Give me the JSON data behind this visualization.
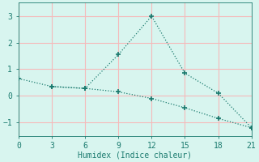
{
  "line1_x": [
    0,
    3,
    6,
    9,
    12,
    15,
    18,
    21
  ],
  "line1_y": [
    0.65,
    0.35,
    0.28,
    1.55,
    3.0,
    0.85,
    0.1,
    -1.2
  ],
  "line2_x": [
    3,
    6,
    9,
    12,
    15,
    18,
    21
  ],
  "line2_y": [
    0.35,
    0.28,
    0.15,
    -0.1,
    -0.45,
    -0.85,
    -1.2
  ],
  "color": "#1a7a6e",
  "xlabel": "Humidex (Indice chaleur)",
  "xlim": [
    0,
    21
  ],
  "ylim": [
    -1.5,
    3.5
  ],
  "xticks": [
    0,
    3,
    6,
    9,
    12,
    15,
    18,
    21
  ],
  "yticks": [
    -1,
    0,
    1,
    2,
    3
  ],
  "bg_color": "#d8f5ef",
  "grid_color": "#f5baba",
  "figsize": [
    3.2,
    2.0
  ],
  "dpi": 100
}
